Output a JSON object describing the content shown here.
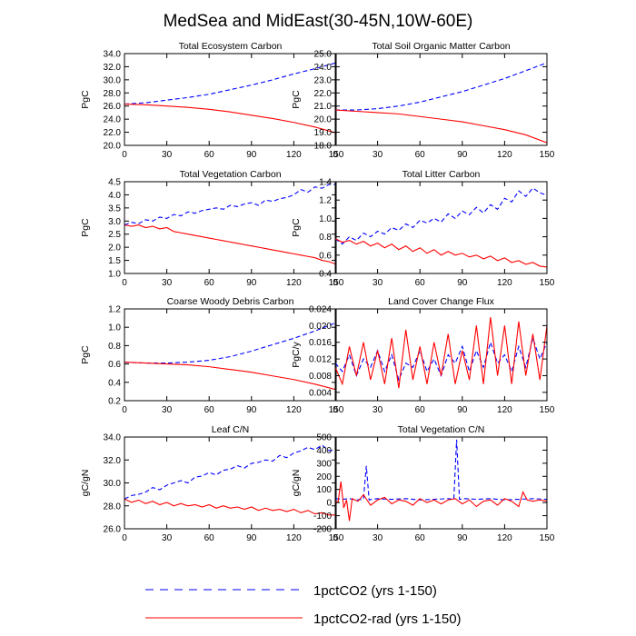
{
  "title": "MedSea and MidEast(30-45N,10W-60E)",
  "legend": [
    {
      "label": "1pctCO2 (yrs 1-150)",
      "color": "#0000ff",
      "dash": "dashed"
    },
    {
      "label": "1pctCO2-rad (yrs 1-150)",
      "color": "#ff0000",
      "dash": "solid"
    }
  ],
  "chart_data": [
    {
      "type": "line",
      "title": "Total Ecosystem Carbon",
      "xlabel": "",
      "ylabel": "PgC",
      "xlim": [
        0,
        150
      ],
      "xticks": [
        0,
        30,
        60,
        90,
        120,
        150
      ],
      "ylim": [
        20,
        34
      ],
      "yticks": [
        "20.0",
        "22.0",
        "24.0",
        "26.0",
        "28.0",
        "30.0",
        "32.0",
        "34.0"
      ],
      "series": [
        {
          "name": "1pctCO2 (yrs 1-150)",
          "color": "#0000ff",
          "dash": "dashed",
          "x": [
            0,
            15,
            30,
            45,
            60,
            75,
            90,
            105,
            120,
            135,
            150
          ],
          "y": [
            26.3,
            26.5,
            26.9,
            27.3,
            27.8,
            28.5,
            29.2,
            30.0,
            30.9,
            31.7,
            32.6
          ]
        },
        {
          "name": "1pctCO2-rad (yrs 1-150)",
          "color": "#ff0000",
          "dash": "solid",
          "x": [
            0,
            15,
            30,
            45,
            60,
            75,
            90,
            105,
            120,
            135,
            150
          ],
          "y": [
            26.3,
            26.2,
            26.0,
            25.8,
            25.5,
            25.1,
            24.6,
            24.1,
            23.5,
            22.8,
            21.9
          ]
        }
      ]
    },
    {
      "type": "line",
      "title": "Total Soil Organic Matter Carbon",
      "xlabel": "",
      "ylabel": "PgC",
      "xlim": [
        0,
        150
      ],
      "xticks": [
        0,
        30,
        60,
        90,
        120,
        150
      ],
      "ylim": [
        18,
        25
      ],
      "yticks": [
        "18.0",
        "19.0",
        "20.0",
        "21.0",
        "22.0",
        "23.0",
        "24.0",
        "25.0"
      ],
      "series": [
        {
          "name": "1pctCO2 (yrs 1-150)",
          "color": "#0000ff",
          "dash": "dashed",
          "x": [
            0,
            15,
            30,
            45,
            60,
            75,
            90,
            105,
            120,
            135,
            150
          ],
          "y": [
            20.7,
            20.7,
            20.8,
            21.0,
            21.3,
            21.7,
            22.1,
            22.6,
            23.1,
            23.7,
            24.3
          ]
        },
        {
          "name": "1pctCO2-rad (yrs 1-150)",
          "color": "#ff0000",
          "dash": "solid",
          "x": [
            0,
            15,
            30,
            45,
            60,
            75,
            90,
            105,
            120,
            135,
            150
          ],
          "y": [
            20.7,
            20.6,
            20.5,
            20.4,
            20.2,
            20.0,
            19.8,
            19.5,
            19.2,
            18.8,
            18.2
          ]
        }
      ]
    },
    {
      "type": "line",
      "title": "Total Vegetation Carbon",
      "xlabel": "",
      "ylabel": "PgC",
      "xlim": [
        0,
        150
      ],
      "xticks": [
        0,
        30,
        60,
        90,
        120,
        150
      ],
      "ylim": [
        1,
        4.5
      ],
      "yticks": [
        "1.0",
        "1.5",
        "2.0",
        "2.5",
        "3.0",
        "3.5",
        "4.0",
        "4.5"
      ],
      "series": [
        {
          "name": "1pctCO2 (yrs 1-150)",
          "color": "#0000ff",
          "dash": "dashed",
          "x": [
            0,
            5,
            10,
            15,
            20,
            25,
            30,
            35,
            40,
            45,
            50,
            55,
            60,
            65,
            70,
            75,
            80,
            85,
            90,
            95,
            100,
            105,
            110,
            115,
            120,
            125,
            130,
            135,
            140,
            145,
            150
          ],
          "y": [
            2.85,
            2.95,
            2.9,
            3.05,
            3.0,
            3.15,
            3.1,
            3.25,
            3.2,
            3.35,
            3.3,
            3.4,
            3.45,
            3.5,
            3.45,
            3.6,
            3.55,
            3.65,
            3.7,
            3.6,
            3.8,
            3.75,
            3.85,
            3.9,
            4.0,
            4.2,
            4.1,
            4.3,
            4.25,
            4.4,
            4.4
          ]
        },
        {
          "name": "1pctCO2-rad (yrs 1-150)",
          "color": "#ff0000",
          "dash": "solid",
          "x": [
            0,
            5,
            10,
            15,
            20,
            25,
            30,
            35,
            40,
            45,
            50,
            55,
            60,
            65,
            70,
            75,
            80,
            85,
            90,
            95,
            100,
            105,
            110,
            115,
            120,
            125,
            130,
            135,
            140,
            145,
            150
          ],
          "y": [
            2.85,
            2.8,
            2.85,
            2.75,
            2.8,
            2.7,
            2.75,
            2.6,
            2.55,
            2.5,
            2.45,
            2.4,
            2.35,
            2.3,
            2.25,
            2.2,
            2.15,
            2.1,
            2.05,
            2.0,
            1.95,
            1.9,
            1.85,
            1.8,
            1.75,
            1.7,
            1.65,
            1.6,
            1.5,
            1.45,
            1.35
          ]
        }
      ]
    },
    {
      "type": "line",
      "title": "Total Litter Carbon",
      "xlabel": "",
      "ylabel": "PgC",
      "xlim": [
        0,
        150
      ],
      "xticks": [
        0,
        30,
        60,
        90,
        120,
        150
      ],
      "ylim": [
        0.4,
        1.4
      ],
      "yticks": [
        "0.4",
        "0.6",
        "0.8",
        "1.0",
        "1.2",
        "1.4"
      ],
      "series": [
        {
          "name": "1pctCO2 (yrs 1-150)",
          "color": "#0000ff",
          "dash": "dashed",
          "x": [
            0,
            5,
            10,
            15,
            20,
            25,
            30,
            35,
            40,
            45,
            50,
            55,
            60,
            65,
            70,
            75,
            80,
            85,
            90,
            95,
            100,
            105,
            110,
            115,
            120,
            125,
            130,
            135,
            140,
            145,
            150
          ],
          "y": [
            0.78,
            0.72,
            0.8,
            0.76,
            0.84,
            0.8,
            0.86,
            0.83,
            0.9,
            0.87,
            0.94,
            0.9,
            0.98,
            0.95,
            1.0,
            0.96,
            1.05,
            1.0,
            1.08,
            1.04,
            1.12,
            1.06,
            1.15,
            1.1,
            1.22,
            1.18,
            1.3,
            1.24,
            1.33,
            1.28,
            1.25
          ]
        },
        {
          "name": "1pctCO2-rad (yrs 1-150)",
          "color": "#ff0000",
          "dash": "solid",
          "x": [
            0,
            5,
            10,
            15,
            20,
            25,
            30,
            35,
            40,
            45,
            50,
            55,
            60,
            65,
            70,
            75,
            80,
            85,
            90,
            95,
            100,
            105,
            110,
            115,
            120,
            125,
            130,
            135,
            140,
            145,
            150
          ],
          "y": [
            0.78,
            0.74,
            0.76,
            0.72,
            0.75,
            0.7,
            0.73,
            0.68,
            0.72,
            0.66,
            0.7,
            0.64,
            0.68,
            0.62,
            0.66,
            0.6,
            0.64,
            0.6,
            0.62,
            0.58,
            0.6,
            0.56,
            0.59,
            0.54,
            0.57,
            0.52,
            0.54,
            0.5,
            0.52,
            0.48,
            0.47
          ]
        }
      ]
    },
    {
      "type": "line",
      "title": "Coarse Woody Debris Carbon",
      "xlabel": "",
      "ylabel": "PgC",
      "xlim": [
        0,
        150
      ],
      "xticks": [
        0,
        30,
        60,
        90,
        120,
        150
      ],
      "ylim": [
        0.2,
        1.2
      ],
      "yticks": [
        "0.2",
        "0.4",
        "0.6",
        "0.8",
        "1.0",
        "1.2"
      ],
      "series": [
        {
          "name": "1pctCO2 (yrs 1-150)",
          "color": "#0000ff",
          "dash": "dashed",
          "x": [
            0,
            15,
            30,
            45,
            60,
            75,
            90,
            105,
            120,
            135,
            150
          ],
          "y": [
            0.62,
            0.61,
            0.61,
            0.62,
            0.64,
            0.68,
            0.74,
            0.81,
            0.88,
            0.96,
            1.05
          ]
        },
        {
          "name": "1pctCO2-rad (yrs 1-150)",
          "color": "#ff0000",
          "dash": "solid",
          "x": [
            0,
            15,
            30,
            45,
            60,
            75,
            90,
            105,
            120,
            135,
            150
          ],
          "y": [
            0.62,
            0.61,
            0.6,
            0.59,
            0.57,
            0.54,
            0.51,
            0.47,
            0.43,
            0.38,
            0.32
          ]
        }
      ]
    },
    {
      "type": "line",
      "title": "Land Cover Change Flux",
      "xlabel": "",
      "ylabel": "PgC/y",
      "xlim": [
        0,
        150
      ],
      "xticks": [
        0,
        30,
        60,
        90,
        120,
        150
      ],
      "ylim": [
        0.002,
        0.024
      ],
      "yticks": [
        "0.004",
        "0.008",
        "0.012",
        "0.016",
        "0.020",
        "0.024"
      ],
      "series": [
        {
          "name": "1pctCO2 (yrs 1-150)",
          "color": "#0000ff",
          "dash": "dashed",
          "x": [
            0,
            5,
            10,
            15,
            20,
            25,
            30,
            35,
            40,
            45,
            50,
            55,
            60,
            65,
            70,
            75,
            80,
            85,
            90,
            95,
            100,
            105,
            110,
            115,
            120,
            125,
            130,
            135,
            140,
            145,
            150
          ],
          "y": [
            0.011,
            0.009,
            0.013,
            0.008,
            0.012,
            0.01,
            0.014,
            0.009,
            0.013,
            0.007,
            0.011,
            0.01,
            0.014,
            0.009,
            0.012,
            0.008,
            0.013,
            0.011,
            0.015,
            0.009,
            0.014,
            0.01,
            0.016,
            0.011,
            0.013,
            0.009,
            0.015,
            0.01,
            0.017,
            0.012,
            0.016
          ]
        },
        {
          "name": "1pctCO2-rad (yrs 1-150)",
          "color": "#ff0000",
          "dash": "solid",
          "x": [
            0,
            5,
            10,
            15,
            20,
            25,
            30,
            35,
            40,
            45,
            50,
            55,
            60,
            65,
            70,
            75,
            80,
            85,
            90,
            95,
            100,
            105,
            110,
            115,
            120,
            125,
            130,
            135,
            140,
            145,
            150
          ],
          "y": [
            0.01,
            0.006,
            0.015,
            0.008,
            0.016,
            0.007,
            0.014,
            0.006,
            0.017,
            0.005,
            0.019,
            0.007,
            0.015,
            0.006,
            0.016,
            0.008,
            0.018,
            0.006,
            0.014,
            0.007,
            0.02,
            0.006,
            0.022,
            0.008,
            0.02,
            0.006,
            0.021,
            0.008,
            0.018,
            0.007,
            0.02
          ]
        }
      ]
    },
    {
      "type": "line",
      "title": "Leaf C/N",
      "xlabel": "",
      "ylabel": "gC/gN",
      "xlim": [
        0,
        150
      ],
      "xticks": [
        0,
        30,
        60,
        90,
        120,
        150
      ],
      "ylim": [
        26,
        34
      ],
      "yticks": [
        "26.0",
        "28.0",
        "30.0",
        "32.0",
        "34.0"
      ],
      "series": [
        {
          "name": "1pctCO2 (yrs 1-150)",
          "color": "#0000ff",
          "dash": "dashed",
          "x": [
            0,
            5,
            10,
            15,
            20,
            25,
            30,
            35,
            40,
            45,
            50,
            55,
            60,
            65,
            70,
            75,
            80,
            85,
            90,
            95,
            100,
            105,
            110,
            115,
            120,
            125,
            130,
            135,
            140,
            145,
            150
          ],
          "y": [
            28.6,
            28.9,
            29.0,
            29.2,
            29.6,
            29.4,
            29.8,
            30.0,
            30.2,
            30.0,
            30.5,
            30.6,
            30.9,
            30.7,
            31.1,
            31.2,
            31.5,
            31.3,
            31.7,
            31.8,
            32.0,
            31.9,
            32.4,
            32.2,
            32.6,
            32.8,
            33.1,
            32.9,
            33.3,
            32.8,
            32.9
          ]
        },
        {
          "name": "1pctCO2-rad (yrs 1-150)",
          "color": "#ff0000",
          "dash": "solid",
          "x": [
            0,
            5,
            10,
            15,
            20,
            25,
            30,
            35,
            40,
            45,
            50,
            55,
            60,
            65,
            70,
            75,
            80,
            85,
            90,
            95,
            100,
            105,
            110,
            115,
            120,
            125,
            130,
            135,
            140,
            145,
            150
          ],
          "y": [
            28.6,
            28.3,
            28.5,
            28.2,
            28.4,
            28.1,
            28.3,
            28.0,
            28.2,
            28.0,
            28.1,
            27.9,
            28.1,
            27.8,
            28.0,
            27.8,
            27.9,
            27.7,
            27.9,
            27.6,
            27.8,
            27.6,
            27.7,
            27.5,
            27.7,
            27.4,
            27.6,
            27.3,
            27.4,
            27.2,
            27.2
          ]
        }
      ]
    },
    {
      "type": "line",
      "title": "Total Vegetation C/N",
      "xlabel": "",
      "ylabel": "gC/gN",
      "xlim": [
        0,
        150
      ],
      "xticks": [
        0,
        30,
        60,
        90,
        120,
        150
      ],
      "ylim": [
        -200,
        500
      ],
      "yticks": [
        "-200",
        "-100",
        "0",
        "100",
        "200",
        "300",
        "400",
        "500"
      ],
      "series": [
        {
          "name": "1pctCO2 (yrs 1-150)",
          "color": "#0000ff",
          "dash": "dashed",
          "x": [
            0,
            5,
            10,
            15,
            20,
            22,
            24,
            26,
            30,
            40,
            50,
            60,
            70,
            80,
            84,
            86,
            88,
            92,
            100,
            110,
            120,
            130,
            140,
            150
          ],
          "y": [
            30,
            25,
            30,
            20,
            25,
            280,
            20,
            25,
            30,
            25,
            30,
            20,
            25,
            30,
            25,
            480,
            25,
            30,
            25,
            30,
            20,
            25,
            30,
            25
          ]
        },
        {
          "name": "1pctCO2-rad (yrs 1-150)",
          "color": "#ff0000",
          "dash": "solid",
          "x": [
            0,
            2,
            4,
            6,
            8,
            10,
            12,
            16,
            20,
            25,
            30,
            35,
            40,
            45,
            50,
            55,
            60,
            65,
            70,
            75,
            80,
            85,
            90,
            95,
            100,
            105,
            110,
            115,
            120,
            125,
            130,
            133,
            136,
            140,
            145,
            150
          ],
          "y": [
            10,
            5,
            160,
            -40,
            20,
            -140,
            30,
            10,
            60,
            -20,
            20,
            40,
            -10,
            20,
            10,
            -20,
            30,
            0,
            20,
            -10,
            20,
            30,
            -10,
            20,
            -30,
            10,
            20,
            -20,
            30,
            10,
            -30,
            80,
            20,
            10,
            20,
            10
          ]
        }
      ]
    }
  ]
}
